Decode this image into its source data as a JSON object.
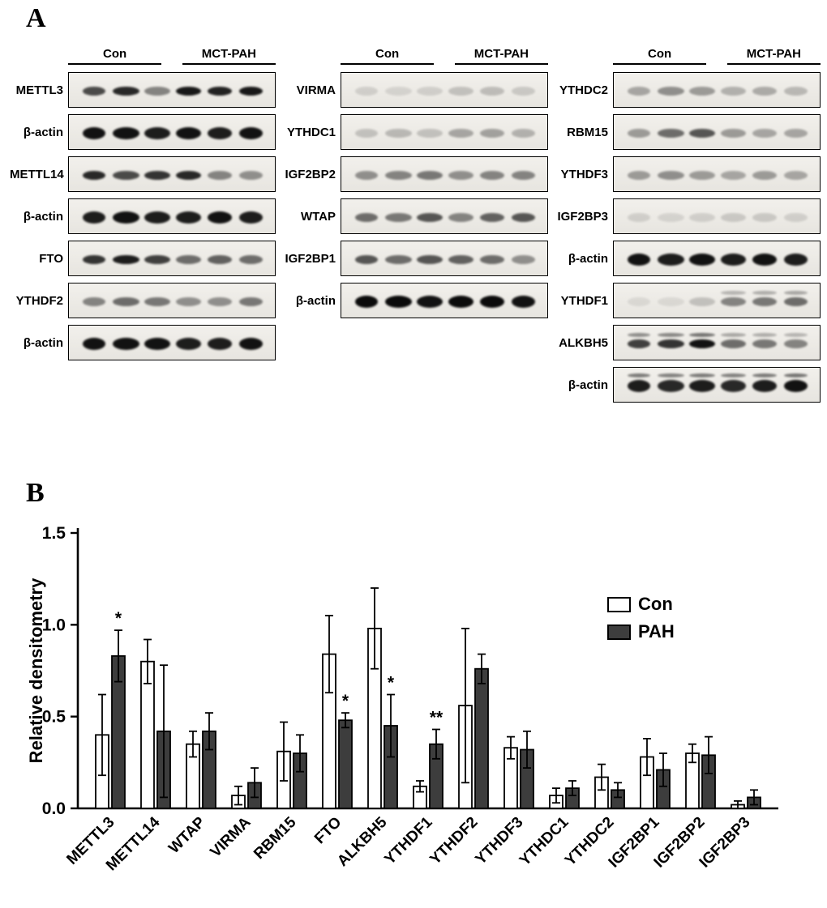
{
  "figure": {
    "panel_a_label": "A",
    "panel_b_label": "B"
  },
  "panel_a": {
    "group_headers": {
      "control": "Con",
      "treatment": "MCT-PAH"
    },
    "columns": [
      {
        "rows": [
          {
            "label": "METTL3",
            "bands": [
              0.7,
              0.85,
              0.45,
              0.92,
              0.88,
              0.92
            ]
          },
          {
            "label": "β-actin",
            "bands": [
              0.95,
              0.95,
              0.9,
              0.95,
              0.9,
              0.95
            ],
            "thick": true
          },
          {
            "label": "METTL14",
            "bands": [
              0.85,
              0.7,
              0.8,
              0.85,
              0.45,
              0.4
            ]
          },
          {
            "label": "β-actin",
            "bands": [
              0.9,
              0.95,
              0.9,
              0.9,
              0.95,
              0.9
            ],
            "thick": true
          },
          {
            "label": "FTO",
            "bands": [
              0.8,
              0.9,
              0.75,
              0.55,
              0.6,
              0.55
            ]
          },
          {
            "label": "YTHDF2",
            "bands": [
              0.45,
              0.55,
              0.5,
              0.4,
              0.4,
              0.5
            ]
          },
          {
            "label": "β-actin",
            "bands": [
              0.95,
              0.95,
              0.95,
              0.9,
              0.9,
              0.95
            ],
            "thick": true
          }
        ]
      },
      {
        "rows": [
          {
            "label": "VIRMA",
            "bands": [
              0.12,
              0.1,
              0.12,
              0.18,
              0.2,
              0.15
            ]
          },
          {
            "label": "YTHDC1",
            "bands": [
              0.18,
              0.22,
              0.18,
              0.3,
              0.32,
              0.25
            ]
          },
          {
            "label": "IGF2BP2",
            "bands": [
              0.4,
              0.45,
              0.5,
              0.4,
              0.45,
              0.45
            ]
          },
          {
            "label": "WTAP",
            "bands": [
              0.55,
              0.5,
              0.65,
              0.45,
              0.6,
              0.65
            ]
          },
          {
            "label": "IGF2BP1",
            "bands": [
              0.65,
              0.55,
              0.65,
              0.6,
              0.55,
              0.4
            ]
          },
          {
            "label": "β-actin",
            "bands": [
              0.98,
              0.98,
              0.95,
              0.98,
              0.98,
              0.95
            ],
            "thick": true
          }
        ]
      },
      {
        "rows": [
          {
            "label": "YTHDC2",
            "bands": [
              0.3,
              0.4,
              0.35,
              0.25,
              0.28,
              0.22
            ]
          },
          {
            "label": "RBM15",
            "bands": [
              0.35,
              0.55,
              0.65,
              0.35,
              0.3,
              0.3
            ]
          },
          {
            "label": "YTHDF3",
            "bands": [
              0.35,
              0.4,
              0.35,
              0.3,
              0.35,
              0.3
            ]
          },
          {
            "label": "IGF2BP3",
            "bands": [
              0.12,
              0.1,
              0.12,
              0.15,
              0.15,
              0.12
            ]
          },
          {
            "label": "β-actin",
            "bands": [
              0.95,
              0.9,
              0.95,
              0.9,
              0.95,
              0.9
            ],
            "thick": true
          },
          {
            "label": "YTHDF1",
            "bands": [
              0.08,
              0.08,
              0.18,
              0.45,
              0.5,
              0.55
            ],
            "doublet": true
          },
          {
            "label": "ALKBH5",
            "bands": [
              0.75,
              0.8,
              0.95,
              0.55,
              0.5,
              0.45
            ],
            "doublet": true
          },
          {
            "label": "β-actin",
            "bands": [
              0.9,
              0.85,
              0.9,
              0.85,
              0.9,
              0.95
            ],
            "thick": true,
            "doublet": true
          }
        ]
      }
    ]
  },
  "chart_data": {
    "type": "bar",
    "title": "",
    "xlabel": "",
    "ylabel": "Relative densitometry",
    "ylim": [
      0,
      1.5
    ],
    "yticks": [
      0.0,
      0.5,
      1.0,
      1.5
    ],
    "legend_position": "upper-right",
    "categories": [
      "METTL3",
      "METTL14",
      "WTAP",
      "VIRMA",
      "RBM15",
      "FTO",
      "ALKBH5",
      "YTHDF1",
      "YTHDF2",
      "YTHDF3",
      "YTHDC1",
      "YTHDC2",
      "IGF2BP1",
      "IGF2BP2",
      "IGF2BP3"
    ],
    "series": [
      {
        "name": "Con",
        "color": "#ffffff",
        "values": [
          0.4,
          0.8,
          0.35,
          0.07,
          0.31,
          0.84,
          0.98,
          0.12,
          0.56,
          0.33,
          0.07,
          0.17,
          0.28,
          0.3,
          0.02
        ],
        "errors": [
          0.22,
          0.12,
          0.07,
          0.05,
          0.16,
          0.21,
          0.22,
          0.03,
          0.42,
          0.06,
          0.04,
          0.07,
          0.1,
          0.05,
          0.02
        ]
      },
      {
        "name": "PAH",
        "color": "#3d3d3d",
        "values": [
          0.83,
          0.42,
          0.42,
          0.14,
          0.3,
          0.48,
          0.45,
          0.35,
          0.76,
          0.32,
          0.11,
          0.1,
          0.21,
          0.29,
          0.06
        ],
        "errors": [
          0.14,
          0.36,
          0.1,
          0.08,
          0.1,
          0.04,
          0.17,
          0.08,
          0.08,
          0.1,
          0.04,
          0.04,
          0.09,
          0.1,
          0.04
        ]
      }
    ],
    "significance": [
      "*",
      "",
      "",
      "",
      "",
      "*",
      "*",
      "**",
      "",
      "",
      "",
      "",
      "",
      "",
      ""
    ]
  }
}
